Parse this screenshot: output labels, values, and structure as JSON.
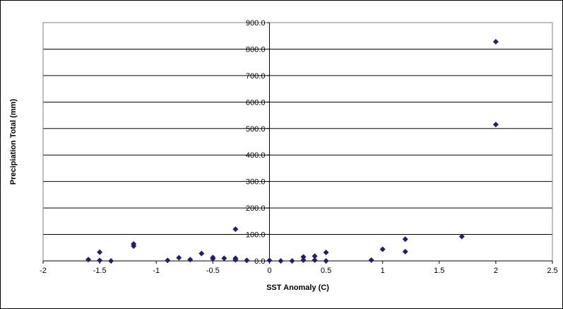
{
  "chart_data": {
    "type": "scatter",
    "title": "",
    "xlabel": "SST Anomaly  (C)",
    "ylabel": "Precipiation Total (mm)",
    "xlim": [
      -2,
      2.5
    ],
    "ylim": [
      0,
      900
    ],
    "x_ticks": [
      -2,
      -1.5,
      -1,
      -0.5,
      0,
      0.5,
      1,
      1.5,
      2,
      2.5
    ],
    "x_tick_labels": [
      "-2",
      "-1.5",
      "-1",
      "-0.5",
      "0",
      "0.5",
      "1",
      "1.5",
      "2",
      "2.5"
    ],
    "y_ticks": [
      0,
      100,
      200,
      300,
      400,
      500,
      600,
      700,
      800,
      900
    ],
    "y_tick_labels": [
      "0.0",
      "100.0",
      "200.0",
      "300.0",
      "400.0",
      "500.0",
      "600.0",
      "700.0",
      "800.0",
      "900.0"
    ],
    "grid": "horizontal major gridlines",
    "legend": "none",
    "marker_color": "#1F1F6B",
    "points": [
      {
        "x": -1.6,
        "y": 5
      },
      {
        "x": -1.5,
        "y": 33
      },
      {
        "x": -1.5,
        "y": 2
      },
      {
        "x": -1.4,
        "y": 0
      },
      {
        "x": -1.2,
        "y": 64
      },
      {
        "x": -1.2,
        "y": 56
      },
      {
        "x": -0.9,
        "y": 2
      },
      {
        "x": -0.8,
        "y": 12
      },
      {
        "x": -0.7,
        "y": 5
      },
      {
        "x": -0.6,
        "y": 28
      },
      {
        "x": -0.5,
        "y": 13
      },
      {
        "x": -0.5,
        "y": 8
      },
      {
        "x": -0.4,
        "y": 10
      },
      {
        "x": -0.3,
        "y": 120
      },
      {
        "x": -0.3,
        "y": 10
      },
      {
        "x": -0.3,
        "y": 4
      },
      {
        "x": -0.2,
        "y": 2
      },
      {
        "x": 0.0,
        "y": 2
      },
      {
        "x": 0.1,
        "y": 0
      },
      {
        "x": 0.2,
        "y": 0
      },
      {
        "x": 0.3,
        "y": 15
      },
      {
        "x": 0.3,
        "y": 3
      },
      {
        "x": 0.4,
        "y": 18
      },
      {
        "x": 0.4,
        "y": 3
      },
      {
        "x": 0.5,
        "y": 32
      },
      {
        "x": 0.5,
        "y": 0
      },
      {
        "x": 0.9,
        "y": 3
      },
      {
        "x": 1.0,
        "y": 44
      },
      {
        "x": 1.2,
        "y": 82
      },
      {
        "x": 1.2,
        "y": 35
      },
      {
        "x": 1.7,
        "y": 92
      },
      {
        "x": 2.0,
        "y": 828
      },
      {
        "x": 2.0,
        "y": 515
      }
    ]
  }
}
